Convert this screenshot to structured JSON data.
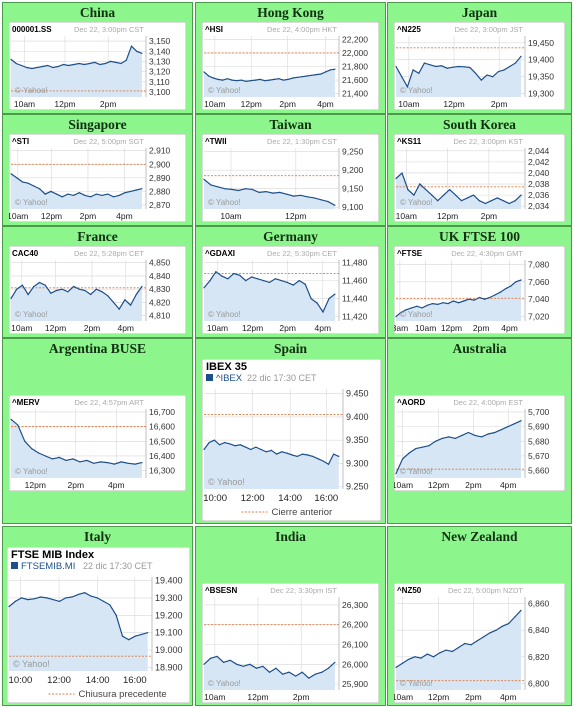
{
  "colors": {
    "bg": "#8cf58c",
    "line": "#1d4f8a",
    "fill": "#d6e6f4",
    "ref": "#e07a40",
    "grid": "#d8d8d8"
  },
  "watermark": "© Yahoo!",
  "chart_data": [
    {
      "region": "China",
      "type": "area",
      "ticker": "000001.SS",
      "timestamp": "Dec 22, 3:00pm CST",
      "ylim": [
        3095,
        3155
      ],
      "yticks": [
        "3,150",
        "3,140",
        "3,130",
        "3,120",
        "3,110",
        "3,100"
      ],
      "ytick_values": [
        3150,
        3140,
        3130,
        3120,
        3110,
        3100
      ],
      "xticks": [
        "10am",
        "12pm",
        "2pm"
      ],
      "xtick_pos": [
        0.1,
        0.4,
        0.72
      ],
      "prev_close": 3101,
      "points": [
        3132,
        3128,
        3126,
        3124,
        3123,
        3124,
        3125,
        3126,
        3124,
        3125,
        3127,
        3126,
        3127,
        3128,
        3127,
        3128,
        3129,
        3127,
        3128,
        3130,
        3129,
        3128,
        3131,
        3145,
        3140,
        3138
      ]
    },
    {
      "region": "Hong Kong",
      "type": "area",
      "ticker": "^HSI",
      "timestamp": "Dec 22, 4:00pm HKT",
      "ylim": [
        21350,
        22250
      ],
      "yticks": [
        "22,200",
        "22,000",
        "21,800",
        "21,600",
        "21,400"
      ],
      "ytick_values": [
        22200,
        22000,
        21800,
        21600,
        21400
      ],
      "xticks": [
        "10am",
        "12pm",
        "2pm",
        "4pm"
      ],
      "xtick_pos": [
        0.08,
        0.35,
        0.62,
        0.9
      ],
      "prev_close": 22000,
      "points": [
        21720,
        21660,
        21630,
        21610,
        21600,
        21620,
        21600,
        21590,
        21600,
        21580,
        21590,
        21600,
        21610,
        21590,
        21600,
        21610,
        21620,
        21600,
        21610,
        21630,
        21640,
        21650,
        21660,
        21670,
        21680,
        21690,
        21720,
        21750,
        21760
      ]
    },
    {
      "region": "Japan",
      "type": "area",
      "ticker": "^N225",
      "timestamp": "Dec 22, 3:00pm JST",
      "ylim": [
        19290,
        19470
      ],
      "yticks": [
        "19,450",
        "19,400",
        "19,350",
        "19,300"
      ],
      "ytick_values": [
        19450,
        19400,
        19350,
        19300
      ],
      "xticks": [
        "10am",
        "12pm",
        "2pm"
      ],
      "xtick_pos": [
        0.1,
        0.45,
        0.8
      ],
      "prev_close": 19435,
      "points": [
        19380,
        19350,
        19320,
        19370,
        19360,
        19390,
        19385,
        19380,
        19382,
        19375,
        19378,
        19380,
        19379,
        19377,
        19360,
        19340,
        19355,
        19350,
        19365,
        19370,
        19380,
        19390,
        19410
      ]
    },
    {
      "region": "Singapore",
      "type": "area",
      "ticker": "^STI",
      "timestamp": "Dec 22, 5:00pm SGT",
      "ylim": [
        2867,
        2912
      ],
      "yticks": [
        "2,910",
        "2,900",
        "2,890",
        "2,880",
        "2,870"
      ],
      "ytick_values": [
        2910,
        2900,
        2890,
        2880,
        2870
      ],
      "xticks": [
        "10am",
        "12pm",
        "2pm",
        "4pm"
      ],
      "xtick_pos": [
        0.05,
        0.3,
        0.57,
        0.84
      ],
      "prev_close": 2900,
      "points": [
        2893,
        2890,
        2887,
        2886,
        2884,
        2882,
        2878,
        2880,
        2878,
        2876,
        2878,
        2877,
        2879,
        2877,
        2876,
        2878,
        2877,
        2878,
        2876,
        2877,
        2879,
        2880,
        2881,
        2882
      ]
    },
    {
      "region": "Taiwan",
      "type": "area",
      "ticker": "^TWII",
      "timestamp": "Dec 22, 1:30pm CST",
      "ylim": [
        9095,
        9260
      ],
      "yticks": [
        "9,250",
        "9,200",
        "9,150",
        "9,100"
      ],
      "ytick_values": [
        9250,
        9200,
        9150,
        9100
      ],
      "xticks": [
        "10am",
        "12pm"
      ],
      "xtick_pos": [
        0.2,
        0.68
      ],
      "prev_close": 9185,
      "points": [
        9175,
        9160,
        9155,
        9150,
        9148,
        9145,
        9150,
        9148,
        9140,
        9142,
        9138,
        9140,
        9135,
        9130,
        9132,
        9128,
        9125,
        9120,
        9115,
        9105
      ]
    },
    {
      "region": "South Korea",
      "type": "area",
      "ticker": "^KS11",
      "timestamp": "Dec 22, 3:00pm KST",
      "ylim": [
        2033.5,
        2044.5
      ],
      "yticks": [
        "2,044",
        "2,042",
        "2,040",
        "2,038",
        "2,036",
        "2,034"
      ],
      "ytick_values": [
        2044,
        2042,
        2040,
        2038,
        2036,
        2034
      ],
      "xticks": [
        "10am",
        "12pm",
        "2pm"
      ],
      "xtick_pos": [
        0.08,
        0.4,
        0.72
      ],
      "prev_close": 2037.5,
      "points": [
        2039,
        2040,
        2037,
        2036,
        2038,
        2037,
        2036,
        2035,
        2036,
        2037,
        2036,
        2035,
        2035.5,
        2036,
        2035,
        2034.5,
        2035,
        2035.5,
        2035,
        2034.5,
        2035,
        2036
      ]
    },
    {
      "region": "France",
      "type": "area",
      "ticker": "CAC40",
      "timestamp": "Dec 22, 5:28pm CET",
      "ylim": [
        4806,
        4852
      ],
      "yticks": [
        "4,850",
        "4,840",
        "4,830",
        "4,820",
        "4,810"
      ],
      "ytick_values": [
        4850,
        4840,
        4830,
        4820,
        4810
      ],
      "xticks": [
        "10am",
        "12pm",
        "2pm",
        "4pm"
      ],
      "xtick_pos": [
        0.08,
        0.33,
        0.6,
        0.85
      ],
      "prev_close": 4831,
      "points": [
        4823,
        4830,
        4833,
        4826,
        4832,
        4835,
        4833,
        4827,
        4829,
        4830,
        4828,
        4832,
        4830,
        4829,
        4826,
        4830,
        4828,
        4825,
        4820,
        4815,
        4822,
        4818,
        4826,
        4832
      ]
    },
    {
      "region": "Germany",
      "type": "area",
      "ticker": "^GDAXI",
      "timestamp": "Dec 22, 5:30pm CET",
      "ylim": [
        11415,
        11483
      ],
      "yticks": [
        "11,480",
        "11,460",
        "11,440",
        "11,420"
      ],
      "ytick_values": [
        11480,
        11460,
        11440,
        11420
      ],
      "xticks": [
        "10am",
        "12pm",
        "2pm",
        "4pm"
      ],
      "xtick_pos": [
        0.1,
        0.36,
        0.62,
        0.88
      ],
      "prev_close": 11468,
      "points": [
        11452,
        11460,
        11470,
        11465,
        11462,
        11468,
        11466,
        11460,
        11464,
        11462,
        11460,
        11458,
        11462,
        11460,
        11458,
        11455,
        11460,
        11456,
        11440,
        11435,
        11425,
        11440,
        11445
      ]
    },
    {
      "region": "UK FTSE 100",
      "type": "area",
      "ticker": "^FTSE",
      "timestamp": "Dec 22, 4:30pm GMT",
      "ylim": [
        7015,
        7085
      ],
      "yticks": [
        "7,080",
        "7,060",
        "7,040",
        "7,020"
      ],
      "ytick_values": [
        7080,
        7060,
        7040,
        7020
      ],
      "xticks": [
        "8am",
        "10am",
        "12pm",
        "2pm",
        "4pm"
      ],
      "xtick_pos": [
        0.03,
        0.23,
        0.43,
        0.66,
        0.88
      ],
      "prev_close": 7041,
      "points": [
        7020,
        7025,
        7028,
        7030,
        7032,
        7030,
        7033,
        7035,
        7034,
        7036,
        7035,
        7038,
        7036,
        7038,
        7040,
        7039,
        7042,
        7040,
        7042,
        7045,
        7048,
        7052,
        7055,
        7060,
        7062
      ]
    },
    {
      "region": "Argentina BUSE",
      "type": "area",
      "ticker": "^MERV",
      "timestamp": "Dec 22, 4:57pm ART",
      "ylim": [
        16250,
        16720
      ],
      "yticks": [
        "16,700",
        "16,600",
        "16,500",
        "16,400",
        "16,300"
      ],
      "ytick_values": [
        16700,
        16600,
        16500,
        16400,
        16300
      ],
      "xticks": [
        "12pm",
        "2pm",
        "4pm"
      ],
      "xtick_pos": [
        0.18,
        0.48,
        0.78
      ],
      "prev_close": 16600,
      "points": [
        16650,
        16610,
        16500,
        16450,
        16420,
        16400,
        16380,
        16390,
        16370,
        16380,
        16360,
        16370,
        16350,
        16360,
        16355,
        16345,
        16360,
        16350,
        16345,
        16355
      ]
    },
    {
      "region": "Spain",
      "type": "area",
      "title": "IBEX 35",
      "ticker": "^IBEX",
      "timestamp": "22 dic 17:30 CET",
      "ylim": [
        9245,
        9460
      ],
      "yticks": [
        "9.450",
        "9.400",
        "9.350",
        "9.300",
        "9.250"
      ],
      "ytick_values": [
        9450,
        9400,
        9350,
        9300,
        9250
      ],
      "xticks": [
        "10:00",
        "12:00",
        "14:00",
        "16:00"
      ],
      "xtick_pos": [
        0.08,
        0.35,
        0.62,
        0.88
      ],
      "prev_close": 9405,
      "legend": "Cierre anterior",
      "points": [
        9330,
        9345,
        9350,
        9340,
        9345,
        9342,
        9338,
        9340,
        9335,
        9330,
        9335,
        9330,
        9325,
        9328,
        9320,
        9325,
        9322,
        9318,
        9315,
        9320,
        9318,
        9315,
        9310,
        9305,
        9298,
        9320,
        9315
      ]
    },
    {
      "region": "Australia",
      "type": "area",
      "ticker": "^AORD",
      "timestamp": "Dec 22, 4:00pm EST",
      "ylim": [
        5655,
        5702
      ],
      "yticks": [
        "5,700",
        "5,690",
        "5,680",
        "5,670",
        "5,660"
      ],
      "ytick_values": [
        5700,
        5690,
        5680,
        5670,
        5660
      ],
      "xticks": [
        "10am",
        "12pm",
        "2pm",
        "4pm"
      ],
      "xtick_pos": [
        0.05,
        0.33,
        0.6,
        0.87
      ],
      "prev_close": 5661,
      "points": [
        5658,
        5668,
        5672,
        5675,
        5676,
        5677,
        5680,
        5682,
        5683,
        5682,
        5684,
        5686,
        5684,
        5683,
        5685,
        5686,
        5688,
        5690,
        5692,
        5694
      ]
    },
    {
      "region": "Italy",
      "type": "area",
      "title": "FTSE MIB Index",
      "ticker": "FTSEMIB.MI",
      "timestamp": "22 dic 17:30 CET",
      "ylim": [
        18880,
        19420
      ],
      "yticks": [
        "19.400",
        "19.300",
        "19.200",
        "19.100",
        "19.000",
        "18.900"
      ],
      "ytick_values": [
        19400,
        19300,
        19200,
        19100,
        19000,
        18900
      ],
      "xticks": [
        "10:00",
        "12:00",
        "14:00",
        "16:00"
      ],
      "xtick_pos": [
        0.08,
        0.35,
        0.62,
        0.88
      ],
      "prev_close": 18965,
      "legend": "Chiusura precedente",
      "points": [
        19250,
        19280,
        19300,
        19290,
        19295,
        19305,
        19300,
        19290,
        19280,
        19300,
        19305,
        19320,
        19330,
        19310,
        19300,
        19280,
        19260,
        19200,
        19080,
        19060,
        19080,
        19090,
        19100
      ]
    },
    {
      "region": "India",
      "type": "area",
      "ticker": "^BSESN",
      "timestamp": "Dec 22, 3:30pm IST",
      "ylim": [
        25870,
        26340
      ],
      "yticks": [
        "26,300",
        "26,200",
        "26,100",
        "26,000",
        "25,900"
      ],
      "ytick_values": [
        26300,
        26200,
        26100,
        26000,
        25900
      ],
      "xticks": [
        "10am",
        "12pm",
        "2pm"
      ],
      "xtick_pos": [
        0.08,
        0.4,
        0.72
      ],
      "prev_close": 26200,
      "points": [
        26000,
        26030,
        26040,
        26010,
        26020,
        26000,
        25990,
        26000,
        25980,
        25990,
        25960,
        25980,
        25950,
        25960,
        25940,
        25960,
        25930,
        25950,
        25960,
        25980,
        26010
      ]
    },
    {
      "region": "New Zealand",
      "type": "area",
      "ticker": "^NZ50",
      "timestamp": "Dec 22, 5:00pm NZDT",
      "ylim": [
        6795,
        6865
      ],
      "yticks": [
        "6,860",
        "6,840",
        "6,820",
        "6,800"
      ],
      "ytick_values": [
        6860,
        6840,
        6820,
        6800
      ],
      "xticks": [
        "10am",
        "12pm",
        "2pm",
        "4pm"
      ],
      "xtick_pos": [
        0.05,
        0.33,
        0.6,
        0.87
      ],
      "prev_close": 6802,
      "points": [
        6812,
        6815,
        6818,
        6820,
        6819,
        6822,
        6820,
        6823,
        6825,
        6824,
        6827,
        6830,
        6829,
        6832,
        6835,
        6838,
        6840,
        6843,
        6845,
        6850,
        6855
      ]
    }
  ]
}
